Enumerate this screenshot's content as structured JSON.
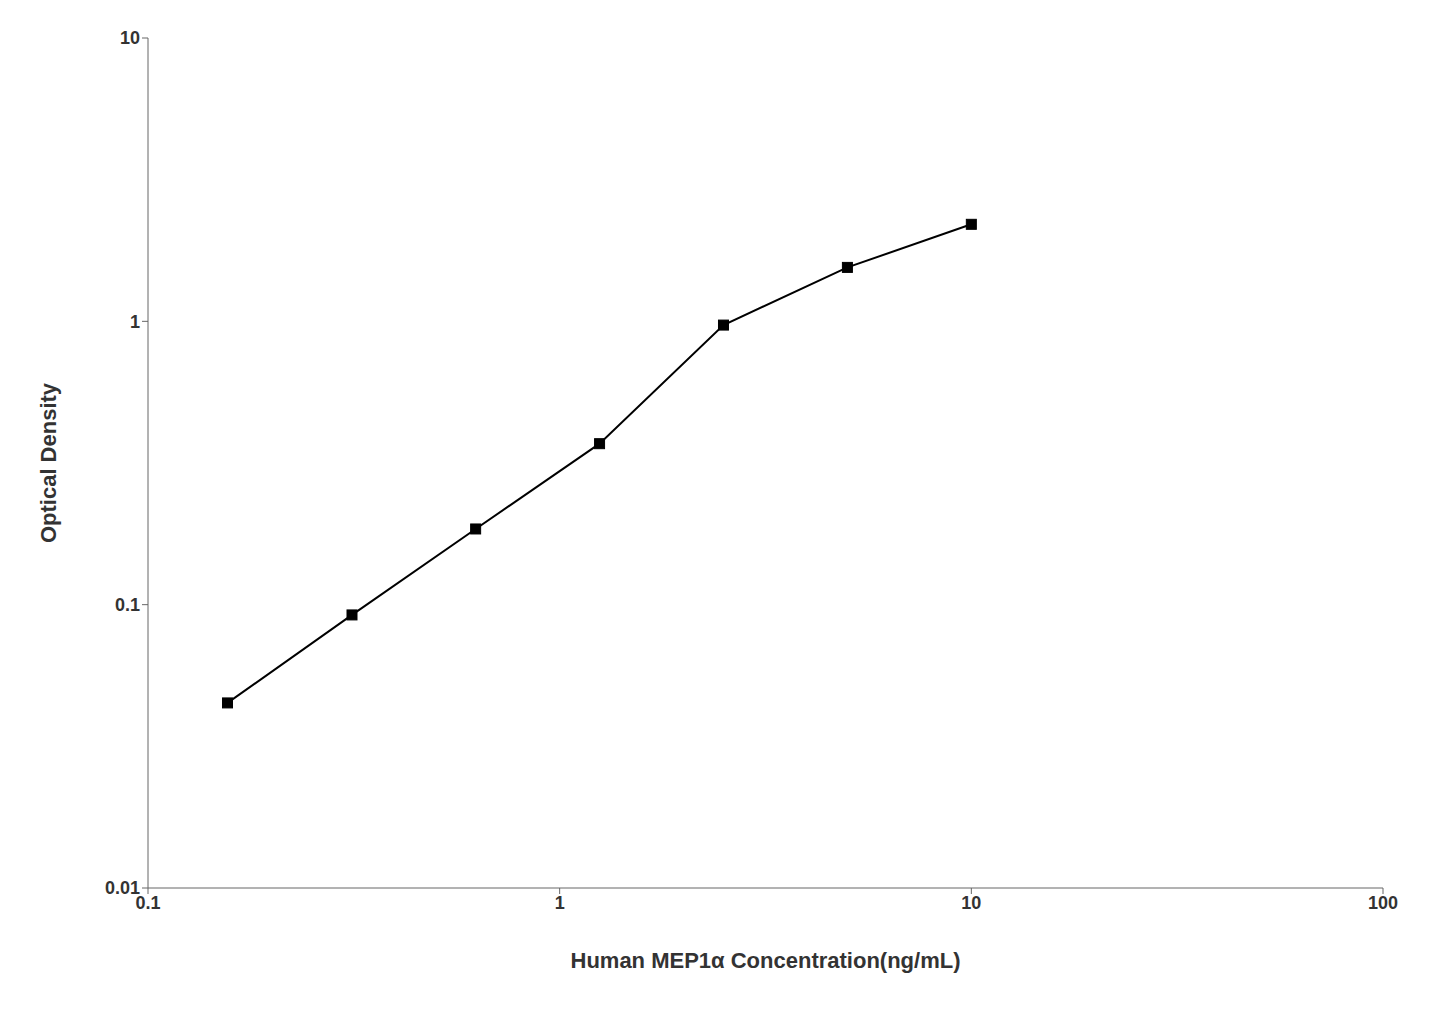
{
  "chart_data": {
    "type": "line",
    "x": [
      0.156,
      0.313,
      0.625,
      1.25,
      2.5,
      5.0,
      10.0
    ],
    "values": [
      0.045,
      0.092,
      0.185,
      0.37,
      0.97,
      1.55,
      2.2
    ],
    "xlabel": "Human MEP1α Concentration(ng/mL)",
    "ylabel": "Optical Density",
    "xlim": [
      0.1,
      100
    ],
    "ylim": [
      0.01,
      10
    ],
    "xticks": [
      0.1,
      1,
      10,
      100
    ],
    "yticks": [
      0.01,
      0.1,
      1,
      10
    ],
    "log": true,
    "grid": false,
    "color": "#000000",
    "marker": "square"
  }
}
